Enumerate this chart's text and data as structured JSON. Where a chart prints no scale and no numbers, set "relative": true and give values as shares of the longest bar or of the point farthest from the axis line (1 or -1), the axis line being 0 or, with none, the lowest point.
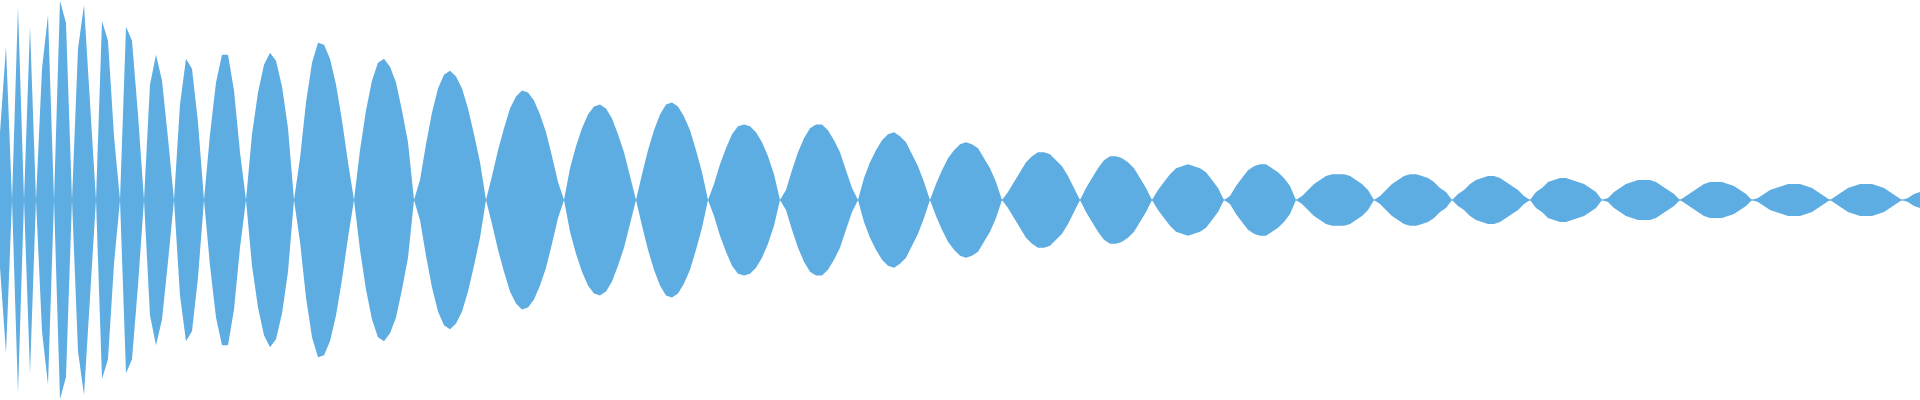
{
  "chart_data": {
    "type": "area",
    "relative": true,
    "ref_lines": [
      {
        "axis": "y",
        "value": 0,
        "color": "#5dade2"
      }
    ],
    "categories": [
      null,
      null,
      null,
      null,
      null,
      null,
      null,
      null,
      null,
      null,
      null,
      null,
      null,
      null,
      null,
      null,
      null,
      null,
      null,
      null,
      null,
      null,
      null,
      null,
      null,
      null,
      null,
      null,
      null,
      null,
      null,
      null,
      null,
      null,
      null,
      null,
      null,
      null,
      null,
      null,
      null,
      null,
      null,
      null,
      null,
      null,
      null,
      null,
      null,
      null,
      null,
      null,
      null,
      null,
      null,
      null,
      null,
      null,
      null,
      null,
      null,
      null,
      null,
      null,
      null,
      null,
      null,
      null,
      null,
      null,
      null,
      null,
      null,
      null,
      null,
      null,
      null,
      null,
      null,
      null,
      null,
      null,
      null,
      null,
      null,
      null,
      null,
      null,
      null,
      null,
      null,
      null,
      null,
      null,
      null,
      null,
      null,
      null,
      null,
      null,
      null,
      null,
      null,
      null,
      null,
      null,
      null,
      null,
      null,
      null,
      null,
      null,
      null,
      null,
      null,
      null,
      null,
      null,
      null,
      null,
      null,
      null,
      null,
      null,
      null,
      null,
      null,
      null,
      null,
      null,
      null,
      null,
      null,
      null,
      null,
      null,
      null,
      null,
      null,
      null,
      null,
      null,
      null,
      null,
      null,
      null,
      null,
      null,
      null,
      null,
      null,
      null,
      null,
      null,
      null,
      null,
      null,
      null,
      null,
      null,
      null,
      null,
      null,
      null,
      null,
      null,
      null,
      null,
      null,
      null,
      null,
      null,
      null,
      null,
      null,
      null,
      null,
      null,
      null,
      null,
      null,
      null,
      null,
      null,
      null,
      null,
      null,
      null,
      null,
      null,
      null,
      null,
      null,
      null,
      null,
      null,
      null,
      null,
      null,
      null,
      null,
      null,
      null,
      null,
      null,
      null,
      null,
      null,
      null,
      null,
      null,
      null,
      null,
      null,
      null,
      null,
      null,
      null,
      null,
      null,
      null,
      null,
      null,
      null,
      null,
      null,
      null,
      null,
      null,
      null,
      null,
      null,
      null,
      null,
      null,
      null,
      null,
      null,
      null,
      null,
      null,
      null,
      null,
      null,
      null,
      null,
      null,
      null,
      null,
      null,
      null,
      null,
      null,
      null,
      null,
      null,
      null,
      null,
      null,
      null,
      null,
      null,
      null,
      null,
      null,
      null,
      null,
      null,
      null,
      null,
      null,
      null,
      null,
      null,
      null,
      null,
      null,
      null,
      null,
      null,
      null,
      null,
      null,
      null,
      null,
      null,
      null,
      null,
      null,
      null,
      null,
      null,
      null,
      null,
      null,
      null,
      null,
      null,
      null,
      null,
      null,
      null,
      null,
      null,
      null,
      null,
      null,
      null,
      null,
      null,
      null,
      null,
      null,
      null,
      null,
      null,
      null,
      null,
      null,
      null,
      null
    ],
    "series": [
      {
        "color": "#5dade2",
        "values": [
          0.34,
          0.77,
          0,
          0.97,
          0,
          0.87,
          0,
          0.66,
          0.93,
          0,
          1,
          0.89,
          0,
          0.76,
          0.98,
          0.49,
          0,
          0.9,
          0.8,
          0.32,
          0,
          0.87,
          0.8,
          0.43,
          0,
          0.58,
          0.73,
          0.6,
          0.31,
          0,
          0.48,
          0.71,
          0.66,
          0.39,
          0,
          0.33,
          0.59,
          0.73,
          0.73,
          0.55,
          0.24,
          0,
          0.33,
          0.54,
          0.68,
          0.74,
          0.7,
          0.57,
          0.36,
          0,
          0.21,
          0.49,
          0.69,
          0.79,
          0.78,
          0.71,
          0.58,
          0.4,
          0.19,
          0,
          0.25,
          0.45,
          0.6,
          0.69,
          0.71,
          0.67,
          0.59,
          0.45,
          0.29,
          0,
          0.1,
          0.28,
          0.44,
          0.56,
          0.63,
          0.65,
          0.62,
          0.56,
          0.46,
          0.33,
          0.19,
          0,
          0.12,
          0.25,
          0.36,
          0.46,
          0.52,
          0.55,
          0.54,
          0.5,
          0.43,
          0.34,
          0.22,
          0.09,
          0,
          0.16,
          0.27,
          0.36,
          0.43,
          0.47,
          0.48,
          0.46,
          0.41,
          0.33,
          0.24,
          0.12,
          0,
          0.13,
          0.25,
          0.35,
          0.43,
          0.48,
          0.49,
          0.47,
          0.42,
          0.35,
          0.25,
          0.14,
          0,
          0.08,
          0.18,
          0.26,
          0.33,
          0.37,
          0.38,
          0.37,
          0.34,
          0.29,
          0.22,
          0.13,
          0,
          0.05,
          0.15,
          0.24,
          0.31,
          0.36,
          0.38,
          0.38,
          0.35,
          0.3,
          0.24,
          0.15,
          0.06,
          0,
          0.11,
          0.19,
          0.25,
          0.3,
          0.33,
          0.34,
          0.32,
          0.29,
          0.23,
          0.17,
          0.09,
          0,
          0.08,
          0.15,
          0.21,
          0.25,
          0.28,
          0.29,
          0.28,
          0.26,
          0.21,
          0.16,
          0.09,
          0,
          0.04,
          0.09,
          0.14,
          0.19,
          0.22,
          0.24,
          0.24,
          0.23,
          0.2,
          0.17,
          0.12,
          0.06,
          0,
          0.06,
          0.11,
          0.16,
          0.2,
          0.22,
          0.22,
          0.21,
          0.19,
          0.16,
          0.11,
          0.06,
          0,
          0.05,
          0.09,
          0.13,
          0.16,
          0.17,
          0.18,
          0.17,
          0.16,
          0.14,
          0.1,
          0.06,
          0,
          0.02,
          0.07,
          0.11,
          0.15,
          0.17,
          0.18,
          0.18,
          0.16,
          0.14,
          0.11,
          0.07,
          0,
          0.02,
          0.05,
          0.08,
          0.1,
          0.12,
          0.13,
          0.13,
          0.13,
          0.12,
          0.1,
          0.08,
          0.05,
          0,
          0.02,
          0.05,
          0.08,
          0.1,
          0.12,
          0.13,
          0.13,
          0.12,
          0.11,
          0.09,
          0.06,
          0.04,
          0,
          0.03,
          0.05,
          0.08,
          0.1,
          0.11,
          0.12,
          0.12,
          0.11,
          0.09,
          0.07,
          0.05,
          0.02,
          0,
          0.04,
          0.06,
          0.09,
          0.1,
          0.11,
          0.11,
          0.1,
          0.09,
          0.08,
          0.06,
          0.04,
          0,
          0.01,
          0.04,
          0.06,
          0.08,
          0.09,
          0.1,
          0.1,
          0.1,
          0.09,
          0.07,
          0.05,
          0.03,
          0,
          0.02,
          0.04,
          0.06,
          0.08,
          0.09,
          0.09,
          0.09,
          0.08,
          0.07,
          0.05,
          0.03,
          0,
          0.01,
          0.03,
          0.05,
          0.06,
          0.07,
          0.08,
          0.08,
          0.08,
          0.07,
          0.06,
          0.04,
          0.02,
          0,
          0.02,
          0.04,
          0.06,
          0.07,
          0.08,
          0.08,
          0.08,
          0.07,
          0.06,
          0.04,
          0.02,
          0,
          0.01,
          0.03,
          0.04
        ]
      },
      {
        "color": "#5dade2",
        "values": [
          -0.34,
          -0.77,
          0,
          -0.97,
          0,
          -0.87,
          0,
          -0.66,
          -0.93,
          0,
          -1,
          -0.89,
          0,
          -0.76,
          -0.98,
          -0.49,
          0,
          -0.9,
          -0.8,
          -0.32,
          0,
          -0.87,
          -0.8,
          -0.43,
          0,
          -0.58,
          -0.73,
          -0.6,
          -0.31,
          0,
          -0.48,
          -0.71,
          -0.66,
          -0.39,
          0,
          -0.33,
          -0.59,
          -0.73,
          -0.73,
          -0.55,
          -0.24,
          0,
          -0.33,
          -0.54,
          -0.68,
          -0.74,
          -0.7,
          -0.57,
          -0.36,
          0,
          -0.21,
          -0.49,
          -0.69,
          -0.79,
          -0.78,
          -0.71,
          -0.58,
          -0.4,
          -0.19,
          0,
          -0.25,
          -0.45,
          -0.6,
          -0.69,
          -0.71,
          -0.67,
          -0.59,
          -0.45,
          -0.29,
          0,
          -0.1,
          -0.28,
          -0.44,
          -0.56,
          -0.63,
          -0.65,
          -0.62,
          -0.56,
          -0.46,
          -0.33,
          -0.19,
          0,
          -0.12,
          -0.25,
          -0.36,
          -0.46,
          -0.52,
          -0.55,
          -0.54,
          -0.5,
          -0.43,
          -0.34,
          -0.22,
          -0.09,
          0,
          -0.16,
          -0.27,
          -0.36,
          -0.43,
          -0.47,
          -0.48,
          -0.46,
          -0.41,
          -0.33,
          -0.24,
          -0.12,
          0,
          -0.13,
          -0.25,
          -0.35,
          -0.43,
          -0.48,
          -0.49,
          -0.47,
          -0.42,
          -0.35,
          -0.25,
          -0.14,
          0,
          -0.08,
          -0.18,
          -0.26,
          -0.33,
          -0.37,
          -0.38,
          -0.37,
          -0.34,
          -0.29,
          -0.22,
          -0.13,
          0,
          -0.05,
          -0.15,
          -0.24,
          -0.31,
          -0.36,
          -0.38,
          -0.38,
          -0.35,
          -0.3,
          -0.24,
          -0.15,
          -0.06,
          0,
          -0.11,
          -0.19,
          -0.25,
          -0.3,
          -0.33,
          -0.34,
          -0.32,
          -0.29,
          -0.23,
          -0.17,
          -0.09,
          0,
          -0.08,
          -0.15,
          -0.21,
          -0.25,
          -0.28,
          -0.29,
          -0.28,
          -0.26,
          -0.21,
          -0.16,
          -0.09,
          0,
          -0.04,
          -0.09,
          -0.14,
          -0.19,
          -0.22,
          -0.24,
          -0.24,
          -0.23,
          -0.2,
          -0.17,
          -0.12,
          -0.06,
          0,
          -0.06,
          -0.11,
          -0.16,
          -0.2,
          -0.22,
          -0.22,
          -0.21,
          -0.19,
          -0.16,
          -0.11,
          -0.06,
          0,
          -0.05,
          -0.09,
          -0.13,
          -0.16,
          -0.17,
          -0.18,
          -0.17,
          -0.16,
          -0.14,
          -0.1,
          -0.06,
          0,
          -0.02,
          -0.07,
          -0.11,
          -0.15,
          -0.17,
          -0.18,
          -0.18,
          -0.16,
          -0.14,
          -0.11,
          -0.07,
          0,
          -0.02,
          -0.05,
          -0.08,
          -0.1,
          -0.12,
          -0.13,
          -0.13,
          -0.13,
          -0.12,
          -0.1,
          -0.08,
          -0.05,
          0,
          -0.02,
          -0.05,
          -0.08,
          -0.1,
          -0.12,
          -0.13,
          -0.13,
          -0.12,
          -0.11,
          -0.09,
          -0.06,
          -0.04,
          0,
          -0.03,
          -0.05,
          -0.08,
          -0.1,
          -0.11,
          -0.12,
          -0.12,
          -0.11,
          -0.09,
          -0.07,
          -0.05,
          -0.02,
          0,
          -0.04,
          -0.06,
          -0.09,
          -0.1,
          -0.11,
          -0.11,
          -0.1,
          -0.09,
          -0.08,
          -0.06,
          -0.04,
          0,
          -0.01,
          -0.04,
          -0.06,
          -0.08,
          -0.09,
          -0.1,
          -0.1,
          -0.1,
          -0.09,
          -0.07,
          -0.05,
          -0.03,
          0,
          -0.02,
          -0.04,
          -0.06,
          -0.08,
          -0.09,
          -0.09,
          -0.09,
          -0.08,
          -0.07,
          -0.05,
          -0.03,
          0,
          -0.01,
          -0.03,
          -0.05,
          -0.06,
          -0.07,
          -0.08,
          -0.08,
          -0.08,
          -0.07,
          -0.06,
          -0.04,
          -0.02,
          0,
          -0.02,
          -0.04,
          -0.06,
          -0.07,
          -0.08,
          -0.08,
          -0.08,
          -0.07,
          -0.06,
          -0.04,
          -0.02,
          0,
          -0.01,
          -0.03,
          -0.04
        ]
      }
    ]
  }
}
